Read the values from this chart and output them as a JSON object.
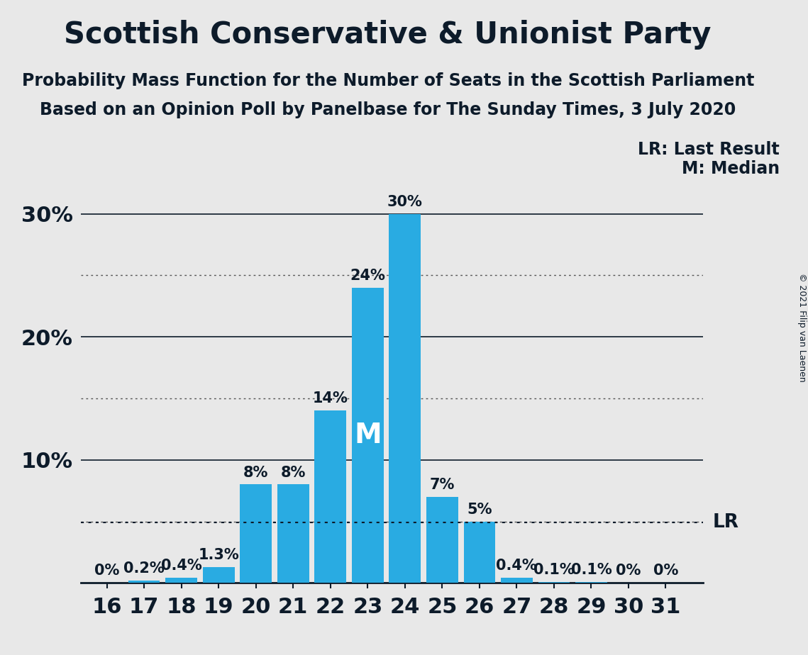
{
  "title": "Scottish Conservative & Unionist Party",
  "subtitle1": "Probability Mass Function for the Number of Seats in the Scottish Parliament",
  "subtitle2": "Based on an Opinion Poll by Panelbase for The Sunday Times, 3 July 2020",
  "copyright_text": "© 2021 Filip van Laenen",
  "seats": [
    16,
    17,
    18,
    19,
    20,
    21,
    22,
    23,
    24,
    25,
    26,
    27,
    28,
    29,
    30,
    31
  ],
  "values": [
    0.0,
    0.2,
    0.4,
    1.3,
    8.0,
    8.0,
    14.0,
    24.0,
    30.0,
    7.0,
    5.0,
    0.4,
    0.1,
    0.1,
    0.0,
    0.0
  ],
  "bar_color": "#29ABE2",
  "background_color": "#E8E8E8",
  "label_color": "#0D1B2A",
  "solid_yticks": [
    10,
    20,
    30
  ],
  "dotted_yticks": [
    5,
    15,
    25
  ],
  "ytick_labels_map": {
    "10": "10%",
    "20": "20%",
    "30": "30%"
  },
  "ylim": [
    0,
    33
  ],
  "lr_value": 4.9,
  "median_seat": 23,
  "lr_label": "LR",
  "lr_legend": "LR: Last Result",
  "median_legend": "M: Median",
  "median_label": "M",
  "title_fontsize": 30,
  "subtitle_fontsize": 17,
  "axis_tick_fontsize": 22,
  "bar_label_fontsize": 15,
  "legend_fontsize": 17
}
